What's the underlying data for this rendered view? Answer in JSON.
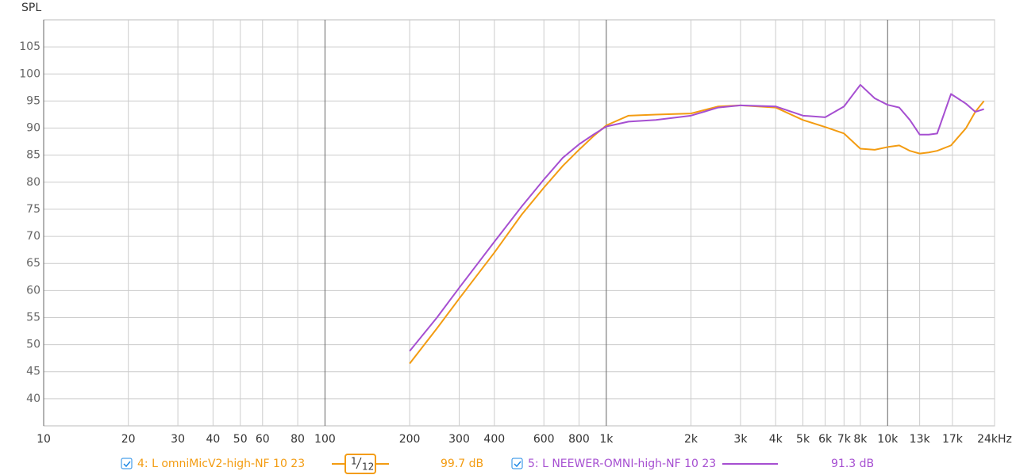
{
  "chart_data": {
    "type": "line",
    "y_label": "SPL",
    "x": [
      200,
      250,
      300,
      400,
      500,
      600,
      700,
      800,
      900,
      1000,
      1200,
      1500,
      2000,
      2500,
      3000,
      4000,
      5000,
      6000,
      7000,
      8000,
      9000,
      10000,
      11000,
      12000,
      13000,
      14000,
      15000,
      16800,
      19000,
      20500,
      22000
    ],
    "series": [
      {
        "name": "4: L omniMicV2-high-NF 10 23",
        "color": "#f39c12",
        "level": "99.7 dB",
        "smoothing_numerator": "1",
        "smoothing_denominator": "12",
        "values": [
          46.5,
          53,
          58.5,
          67,
          74,
          79,
          83,
          86,
          88.5,
          90.5,
          92.3,
          92.5,
          92.7,
          94,
          94.2,
          93.8,
          91.5,
          90.2,
          89,
          86.2,
          86,
          86.5,
          86.8,
          85.8,
          85.3,
          85.5,
          85.8,
          86.8,
          90,
          93,
          95
        ]
      },
      {
        "name": "5: L NEEWER-OMNI-high-NF 10 23",
        "color": "#a64fd1",
        "level": "91.3 dB",
        "values": [
          48.8,
          55,
          60.5,
          69,
          75.5,
          80.5,
          84.5,
          87,
          88.8,
          90.3,
          91.2,
          91.5,
          92.3,
          93.8,
          94.2,
          94,
          92.3,
          92,
          94,
          98,
          95.5,
          94.3,
          93.8,
          91.5,
          88.8,
          88.8,
          89,
          96.3,
          94.5,
          93,
          93.5
        ]
      }
    ],
    "xscale": "log",
    "xlim": [
      10,
      24000
    ],
    "ylim": [
      35,
      110
    ],
    "xticks": [
      10,
      20,
      30,
      40,
      50,
      60,
      80,
      100,
      200,
      300,
      400,
      600,
      800,
      {
        "value": 1000,
        "label": "1k"
      },
      {
        "value": 2000,
        "label": "2k"
      },
      {
        "value": 3000,
        "label": "3k"
      },
      {
        "value": 4000,
        "label": "4k"
      },
      {
        "value": 5000,
        "label": "5k"
      },
      {
        "value": 6000,
        "label": "6k"
      },
      {
        "value": 7000,
        "label": "7k"
      },
      {
        "value": 8000,
        "label": "8k"
      },
      {
        "value": 10000,
        "label": "10k"
      },
      {
        "value": 13000,
        "label": "13k"
      },
      {
        "value": 17000,
        "label": "17k"
      },
      {
        "value": 24000,
        "label": "24kHz"
      }
    ],
    "yticks": [
      40,
      45,
      50,
      55,
      60,
      65,
      70,
      75,
      80,
      85,
      90,
      95,
      100,
      105
    ],
    "grid": true
  }
}
